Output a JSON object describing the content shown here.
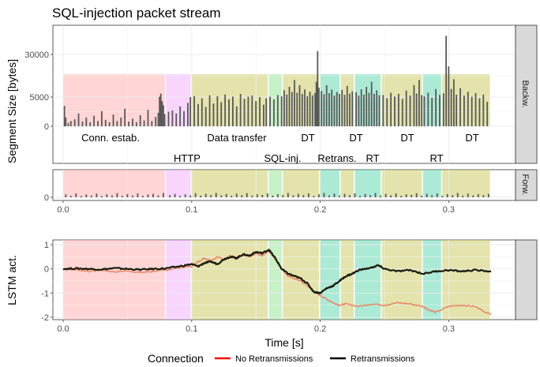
{
  "chart_data": {
    "type": "line",
    "title": "SQL-injection packet stream",
    "xlabel": "Time [s]",
    "x_ticks": [
      "0.0",
      "0.1",
      "0.2",
      "0.3"
    ],
    "xlim": [
      -0.008,
      0.352
    ],
    "phases": [
      {
        "name": "Conn. estab.",
        "start": 0.0,
        "end": 0.08,
        "color": "#ffb3b3"
      },
      {
        "name": "HTTP",
        "start": 0.08,
        "end": 0.1,
        "color": "#f0b3ff"
      },
      {
        "name": "Data transfer",
        "start": 0.1,
        "end": 0.16,
        "color": "#cccc66"
      },
      {
        "name": "SQL-inj.",
        "start": 0.16,
        "end": 0.171,
        "color": "#99e699"
      },
      {
        "name": "DT",
        "start": 0.171,
        "end": 0.2,
        "color": "#cccc66"
      },
      {
        "name": "Retrans.",
        "start": 0.2,
        "end": 0.216,
        "color": "#66d9b3"
      },
      {
        "name": "DT",
        "start": 0.216,
        "end": 0.227,
        "color": "#cccc66"
      },
      {
        "name": "RT",
        "start": 0.227,
        "end": 0.248,
        "color": "#66d9b3"
      },
      {
        "name": "DT",
        "start": 0.248,
        "end": 0.28,
        "color": "#cccc66"
      },
      {
        "name": "RT",
        "start": 0.28,
        "end": 0.295,
        "color": "#66d9b3"
      },
      {
        "name": "DT",
        "start": 0.295,
        "end": 0.333,
        "color": "#cccc66"
      }
    ],
    "panels": [
      {
        "id": "backward",
        "strip_label": "Backw.",
        "ylabel": "Segment Size [bytes]",
        "y_ticks": [
          "0",
          "5000",
          "30000"
        ],
        "bars": [
          [
            0.001,
            3500
          ],
          [
            0.002,
            1500
          ],
          [
            0.004,
            600
          ],
          [
            0.006,
            900
          ],
          [
            0.009,
            1200
          ],
          [
            0.012,
            2200
          ],
          [
            0.015,
            800
          ],
          [
            0.018,
            1500
          ],
          [
            0.021,
            700
          ],
          [
            0.024,
            1800
          ],
          [
            0.027,
            900
          ],
          [
            0.03,
            2600
          ],
          [
            0.033,
            1100
          ],
          [
            0.036,
            700
          ],
          [
            0.039,
            2000
          ],
          [
            0.042,
            900
          ],
          [
            0.045,
            1500
          ],
          [
            0.048,
            3000
          ],
          [
            0.051,
            800
          ],
          [
            0.054,
            1300
          ],
          [
            0.057,
            700
          ],
          [
            0.06,
            1900
          ],
          [
            0.063,
            1000
          ],
          [
            0.066,
            2800
          ],
          [
            0.069,
            900
          ],
          [
            0.072,
            1600
          ],
          [
            0.074,
            2300
          ],
          [
            0.075,
            5200
          ],
          [
            0.076,
            7000
          ],
          [
            0.077,
            4300
          ],
          [
            0.078,
            3600
          ],
          [
            0.079,
            2100
          ],
          [
            0.082,
            2500
          ],
          [
            0.085,
            2700
          ],
          [
            0.088,
            2200
          ],
          [
            0.091,
            3400
          ],
          [
            0.094,
            2600
          ],
          [
            0.097,
            4000
          ],
          [
            0.099,
            5000
          ],
          [
            0.102,
            5500
          ],
          [
            0.105,
            3800
          ],
          [
            0.108,
            4800
          ],
          [
            0.111,
            3300
          ],
          [
            0.114,
            6000
          ],
          [
            0.117,
            3900
          ],
          [
            0.12,
            5500
          ],
          [
            0.123,
            4100
          ],
          [
            0.126,
            6500
          ],
          [
            0.129,
            4600
          ],
          [
            0.132,
            5300
          ],
          [
            0.135,
            3400
          ],
          [
            0.138,
            6800
          ],
          [
            0.141,
            4700
          ],
          [
            0.144,
            5200
          ],
          [
            0.147,
            5900
          ],
          [
            0.15,
            4300
          ],
          [
            0.153,
            5000
          ],
          [
            0.156,
            3700
          ],
          [
            0.158,
            4800
          ],
          [
            0.161,
            5200
          ],
          [
            0.164,
            4600
          ],
          [
            0.167,
            6200
          ],
          [
            0.17,
            5400
          ],
          [
            0.172,
            9000
          ],
          [
            0.174,
            6500
          ],
          [
            0.176,
            11000
          ],
          [
            0.178,
            8000
          ],
          [
            0.18,
            15000
          ],
          [
            0.182,
            7500
          ],
          [
            0.184,
            12000
          ],
          [
            0.186,
            6800
          ],
          [
            0.188,
            9500
          ],
          [
            0.19,
            5500
          ],
          [
            0.192,
            8200
          ],
          [
            0.194,
            6000
          ],
          [
            0.196,
            7400
          ],
          [
            0.197,
            14000
          ],
          [
            0.198,
            32000
          ],
          [
            0.199,
            10500
          ],
          [
            0.201,
            8500
          ],
          [
            0.203,
            6600
          ],
          [
            0.205,
            12000
          ],
          [
            0.207,
            7300
          ],
          [
            0.209,
            9400
          ],
          [
            0.211,
            5800
          ],
          [
            0.213,
            8000
          ],
          [
            0.215,
            6900
          ],
          [
            0.217,
            9200
          ],
          [
            0.219,
            6300
          ],
          [
            0.221,
            11500
          ],
          [
            0.223,
            7000
          ],
          [
            0.225,
            8400
          ],
          [
            0.228,
            7800
          ],
          [
            0.23,
            5900
          ],
          [
            0.232,
            9600
          ],
          [
            0.234,
            6400
          ],
          [
            0.236,
            11000
          ],
          [
            0.238,
            7500
          ],
          [
            0.24,
            14000
          ],
          [
            0.242,
            6800
          ],
          [
            0.244,
            9000
          ],
          [
            0.246,
            6100
          ],
          [
            0.249,
            6200
          ],
          [
            0.252,
            4800
          ],
          [
            0.255,
            7500
          ],
          [
            0.258,
            5300
          ],
          [
            0.261,
            6900
          ],
          [
            0.264,
            4700
          ],
          [
            0.267,
            8800
          ],
          [
            0.27,
            5900
          ],
          [
            0.273,
            12000
          ],
          [
            0.275,
            7100
          ],
          [
            0.277,
            15000
          ],
          [
            0.279,
            6200
          ],
          [
            0.281,
            5400
          ],
          [
            0.284,
            7600
          ],
          [
            0.287,
            4900
          ],
          [
            0.29,
            9700
          ],
          [
            0.293,
            6300
          ],
          [
            0.296,
            7200
          ],
          [
            0.298,
            41000
          ],
          [
            0.3,
            23000
          ],
          [
            0.302,
            9800
          ],
          [
            0.304,
            15500
          ],
          [
            0.306,
            6400
          ],
          [
            0.309,
            10200
          ],
          [
            0.312,
            5800
          ],
          [
            0.315,
            8100
          ],
          [
            0.318,
            5200
          ],
          [
            0.321,
            7400
          ],
          [
            0.324,
            4800
          ],
          [
            0.327,
            6500
          ],
          [
            0.33,
            4200
          ]
        ]
      },
      {
        "id": "forward",
        "strip_label": "Forw.",
        "ylabel": "",
        "y_ticks": [
          "0"
        ],
        "bars": [
          [
            0.002,
            700
          ],
          [
            0.006,
            350
          ],
          [
            0.01,
            900
          ],
          [
            0.014,
            300
          ],
          [
            0.018,
            650
          ],
          [
            0.022,
            400
          ],
          [
            0.026,
            850
          ],
          [
            0.03,
            300
          ],
          [
            0.034,
            700
          ],
          [
            0.038,
            450
          ],
          [
            0.042,
            950
          ],
          [
            0.046,
            350
          ],
          [
            0.05,
            750
          ],
          [
            0.054,
            400
          ],
          [
            0.058,
            900
          ],
          [
            0.062,
            350
          ],
          [
            0.066,
            650
          ],
          [
            0.07,
            800
          ],
          [
            0.074,
            450
          ],
          [
            0.078,
            1000
          ],
          [
            0.083,
            500
          ],
          [
            0.087,
            800
          ],
          [
            0.091,
            350
          ],
          [
            0.095,
            700
          ],
          [
            0.099,
            450
          ],
          [
            0.103,
            950
          ],
          [
            0.107,
            400
          ],
          [
            0.111,
            800
          ],
          [
            0.115,
            500
          ],
          [
            0.119,
            1000
          ],
          [
            0.123,
            450
          ],
          [
            0.127,
            750
          ],
          [
            0.131,
            350
          ],
          [
            0.135,
            850
          ],
          [
            0.139,
            500
          ],
          [
            0.143,
            950
          ],
          [
            0.147,
            400
          ],
          [
            0.151,
            700
          ],
          [
            0.155,
            550
          ],
          [
            0.159,
            900
          ],
          [
            0.163,
            400
          ],
          [
            0.167,
            750
          ],
          [
            0.171,
            550
          ],
          [
            0.175,
            1000
          ],
          [
            0.179,
            450
          ],
          [
            0.183,
            800
          ],
          [
            0.187,
            500
          ],
          [
            0.191,
            900
          ],
          [
            0.195,
            350
          ],
          [
            0.199,
            700
          ],
          [
            0.203,
            1000
          ],
          [
            0.207,
            450
          ],
          [
            0.211,
            850
          ],
          [
            0.215,
            400
          ],
          [
            0.219,
            800
          ],
          [
            0.223,
            500
          ],
          [
            0.227,
            900
          ],
          [
            0.231,
            350
          ],
          [
            0.235,
            750
          ],
          [
            0.239,
            500
          ],
          [
            0.243,
            1000
          ],
          [
            0.247,
            400
          ],
          [
            0.251,
            800
          ],
          [
            0.255,
            450
          ],
          [
            0.259,
            900
          ],
          [
            0.263,
            350
          ],
          [
            0.267,
            700
          ],
          [
            0.271,
            550
          ],
          [
            0.275,
            950
          ],
          [
            0.279,
            400
          ],
          [
            0.283,
            800
          ],
          [
            0.287,
            500
          ],
          [
            0.291,
            900
          ],
          [
            0.295,
            350
          ],
          [
            0.299,
            750
          ],
          [
            0.303,
            500
          ],
          [
            0.307,
            1000
          ],
          [
            0.311,
            400
          ],
          [
            0.315,
            850
          ],
          [
            0.319,
            450
          ],
          [
            0.323,
            750
          ],
          [
            0.327,
            500
          ],
          [
            0.331,
            800
          ]
        ]
      },
      {
        "id": "lstm",
        "strip_label": "",
        "ylabel": "LSTM act.",
        "y_ticks": [
          "1",
          "0",
          "-1",
          "-2"
        ],
        "ylim": [
          -2.1,
          1.2
        ]
      }
    ],
    "legend": {
      "title": "Connection",
      "position": "bottom"
    },
    "series": [
      {
        "name": "No Retransmissions",
        "legend_color": "#ff0000",
        "line_color": "#e8896a",
        "x": [
          0.0,
          0.01,
          0.02,
          0.03,
          0.04,
          0.05,
          0.06,
          0.07,
          0.08,
          0.09,
          0.1,
          0.105,
          0.11,
          0.115,
          0.12,
          0.125,
          0.13,
          0.135,
          0.14,
          0.145,
          0.15,
          0.155,
          0.16,
          0.165,
          0.17,
          0.175,
          0.18,
          0.185,
          0.19,
          0.195,
          0.2,
          0.205,
          0.21,
          0.215,
          0.22,
          0.23,
          0.24,
          0.25,
          0.26,
          0.27,
          0.28,
          0.285,
          0.29,
          0.3,
          0.31,
          0.32,
          0.333
        ],
        "y": [
          0.0,
          -0.03,
          -0.1,
          -0.05,
          -0.12,
          -0.08,
          -0.15,
          -0.1,
          -0.05,
          0.05,
          0.1,
          0.3,
          0.45,
          0.35,
          0.5,
          0.4,
          0.55,
          0.45,
          0.6,
          0.5,
          0.65,
          0.55,
          0.75,
          0.4,
          0.0,
          -0.3,
          -0.4,
          -0.5,
          -0.7,
          -0.9,
          -1.1,
          -1.25,
          -1.4,
          -1.5,
          -1.45,
          -1.55,
          -1.45,
          -1.5,
          -1.4,
          -1.45,
          -1.55,
          -1.7,
          -1.8,
          -1.55,
          -1.5,
          -1.55,
          -1.9
        ]
      },
      {
        "name": "Retransmissions",
        "legend_color": "#000000",
        "line_color": "#1a1a0d",
        "x": [
          0.0,
          0.01,
          0.02,
          0.03,
          0.04,
          0.05,
          0.06,
          0.07,
          0.08,
          0.09,
          0.1,
          0.105,
          0.11,
          0.115,
          0.12,
          0.125,
          0.13,
          0.135,
          0.14,
          0.145,
          0.15,
          0.155,
          0.16,
          0.165,
          0.17,
          0.175,
          0.18,
          0.185,
          0.19,
          0.195,
          0.2,
          0.205,
          0.21,
          0.215,
          0.22,
          0.225,
          0.23,
          0.24,
          0.245,
          0.25,
          0.26,
          0.27,
          0.28,
          0.29,
          0.3,
          0.31,
          0.32,
          0.333
        ],
        "y": [
          0.0,
          0.02,
          0.0,
          -0.02,
          0.03,
          0.0,
          -0.03,
          0.0,
          0.02,
          0.1,
          0.2,
          0.1,
          0.25,
          0.3,
          0.2,
          0.4,
          0.5,
          0.45,
          0.6,
          0.55,
          0.7,
          0.65,
          0.8,
          0.45,
          0.0,
          -0.2,
          -0.3,
          -0.4,
          -0.6,
          -0.95,
          -1.0,
          -0.8,
          -0.7,
          -0.5,
          -0.3,
          -0.2,
          -0.05,
          0.05,
          0.15,
          0.0,
          -0.1,
          -0.05,
          -0.2,
          -0.1,
          -0.05,
          -0.1,
          -0.05,
          -0.1
        ]
      }
    ]
  }
}
